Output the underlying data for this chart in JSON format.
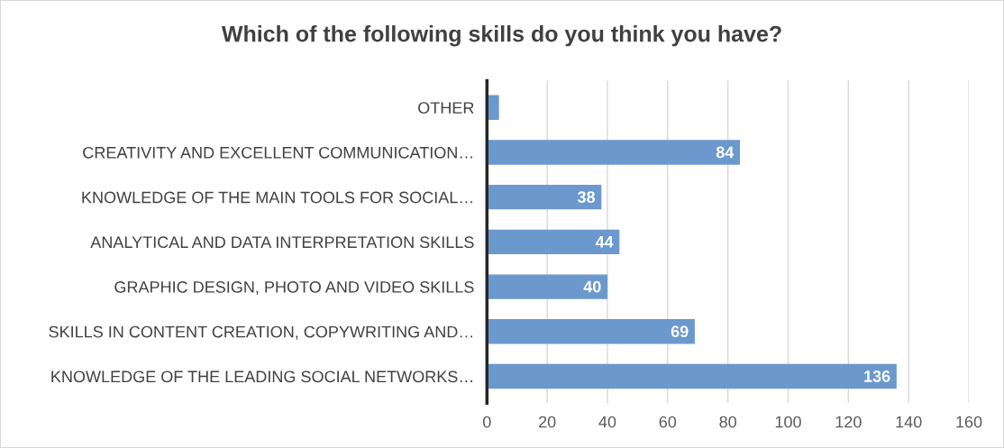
{
  "chart_data": {
    "type": "bar",
    "orientation": "horizontal",
    "title": "Which of the following skills do you think you have?",
    "categories": [
      "OTHER",
      "CREATIVITY AND EXCELLENT COMMUNICATION…",
      "KNOWLEDGE OF THE MAIN TOOLS FOR SOCIAL…",
      "ANALYTICAL AND DATA INTERPRETATION SKILLS",
      "GRAPHIC DESIGN, PHOTO AND VIDEO SKILLS",
      "SKILLS IN CONTENT CREATION, COPYWRITING AND…",
      "KNOWLEDGE OF THE LEADING SOCIAL NETWORKS…"
    ],
    "values": [
      4,
      84,
      38,
      44,
      40,
      69,
      136
    ],
    "value_labels": [
      null,
      "84",
      "38",
      "44",
      "40",
      "69",
      "136"
    ],
    "color": "#6b98cd",
    "xlim": [
      0,
      160
    ],
    "xticks": [
      0,
      20,
      40,
      60,
      80,
      100,
      120,
      140,
      160
    ],
    "grid": "x",
    "legend": false
  }
}
